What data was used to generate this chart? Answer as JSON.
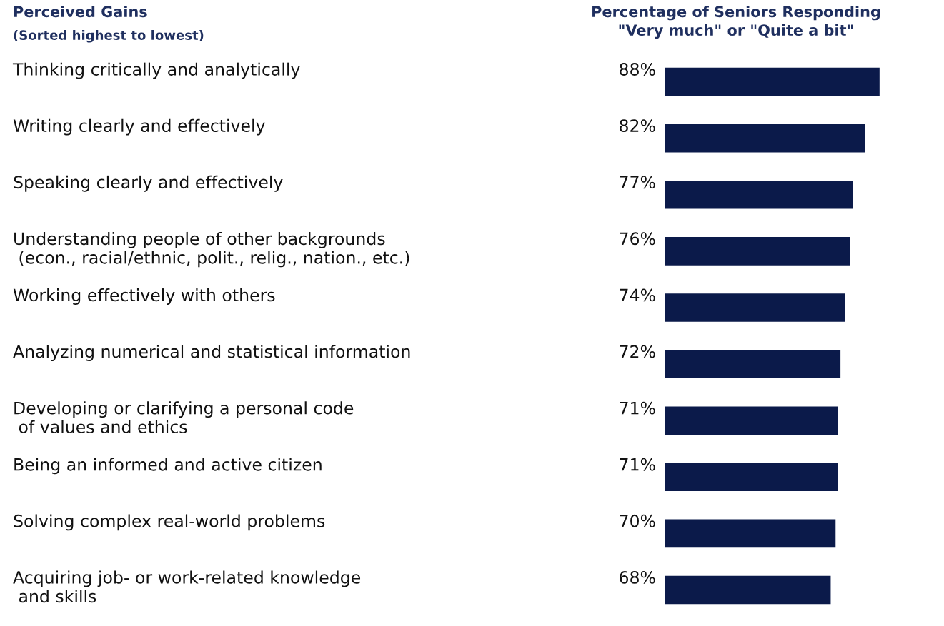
{
  "chart_data": {
    "type": "bar",
    "orientation": "horizontal",
    "title": "Perceived Gains",
    "subtitle": "(Sorted highest to lowest)",
    "xlabel": "Percentage of Seniors Responding\n\"Very much\" or \"Quite a bit\"",
    "categories": [
      "Thinking critically and analytically",
      "Writing clearly and effectively",
      "Speaking clearly and effectively",
      "Understanding people of other backgrounds\n (econ., racial/ethnic, polit., relig., nation., etc.)",
      "Working effectively with others",
      "Analyzing numerical and statistical information",
      "Developing or clarifying a personal code\n of values and ethics",
      "Being an informed and active citizen",
      "Solving complex real-world problems",
      "Acquiring job- or work-related knowledge\n and skills"
    ],
    "values": [
      88,
      82,
      77,
      76,
      74,
      72,
      71,
      71,
      70,
      68
    ],
    "value_labels": [
      "88%",
      "82%",
      "77%",
      "76%",
      "74%",
      "72%",
      "71%",
      "71%",
      "70%",
      "68%"
    ],
    "color": "#0b1a4a"
  }
}
